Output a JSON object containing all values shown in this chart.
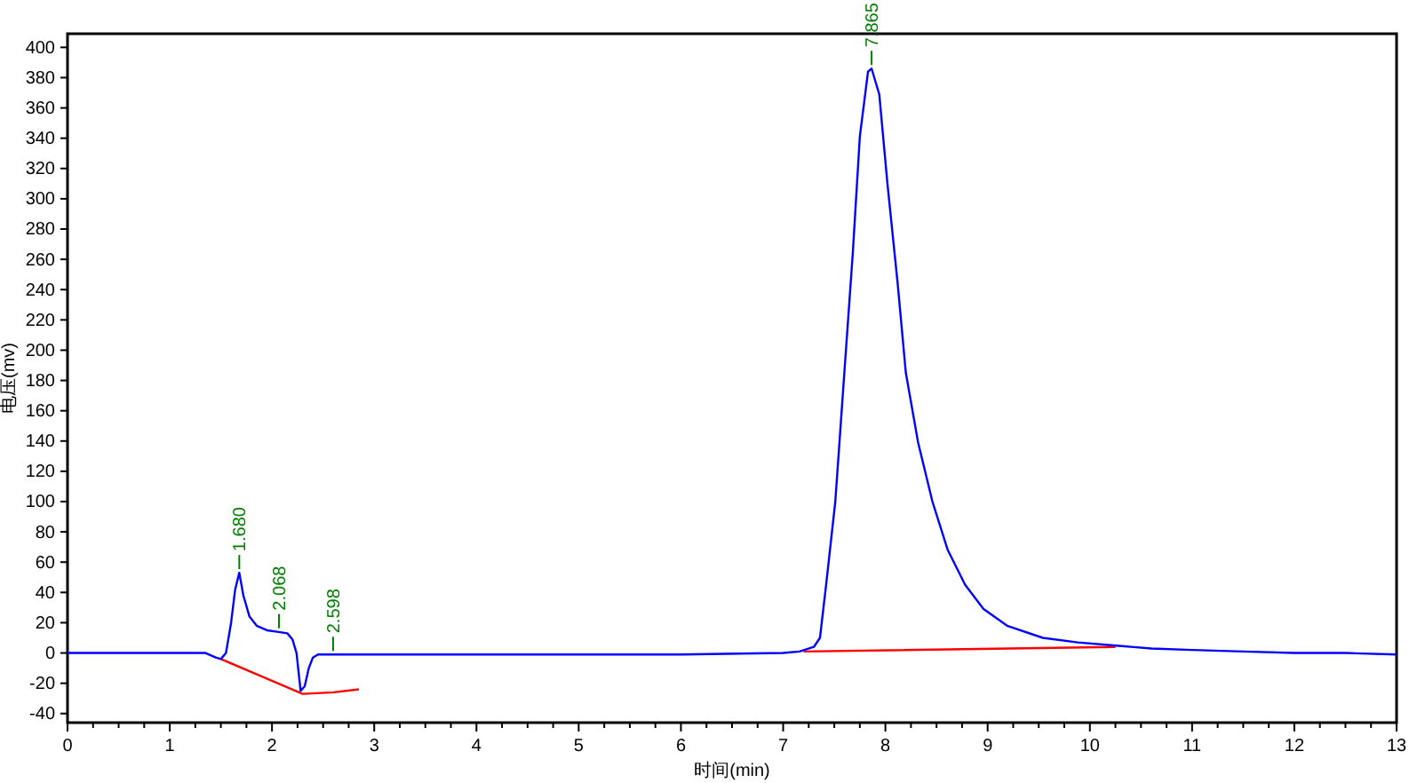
{
  "chart_data": {
    "type": "line",
    "xlabel": "时间(min)",
    "ylabel": "电压(mv)",
    "xlim": [
      0,
      13
    ],
    "ylim": [
      -46,
      409
    ],
    "xticks": [
      0,
      {
        "value": 0.25,
        "label": null
      },
      {
        "value": 0.5,
        "label": null
      },
      {
        "value": 0.75,
        "label": null
      },
      1,
      {
        "value": 1.25,
        "label": null
      },
      {
        "value": 1.5,
        "label": null
      },
      {
        "value": 1.75,
        "label": null
      },
      2,
      {
        "value": 2.25,
        "label": null
      },
      {
        "value": 2.5,
        "label": null
      },
      {
        "value": 2.75,
        "label": null
      },
      3,
      {
        "value": 3.25,
        "label": null
      },
      {
        "value": 3.5,
        "label": null
      },
      {
        "value": 3.75,
        "label": null
      },
      4,
      {
        "value": 4.25,
        "label": null
      },
      {
        "value": 4.5,
        "label": null
      },
      {
        "value": 4.75,
        "label": null
      },
      5,
      {
        "value": 5.25,
        "label": null
      },
      {
        "value": 5.5,
        "label": null
      },
      {
        "value": 5.75,
        "label": null
      },
      6,
      {
        "value": 6.25,
        "label": null
      },
      {
        "value": 6.5,
        "label": null
      },
      {
        "value": 6.75,
        "label": null
      },
      7,
      {
        "value": 7.25,
        "label": null
      },
      {
        "value": 7.5,
        "label": null
      },
      {
        "value": 7.75,
        "label": null
      },
      8,
      {
        "value": 8.25,
        "label": null
      },
      {
        "value": 8.5,
        "label": null
      },
      {
        "value": 8.75,
        "label": null
      },
      9,
      {
        "value": 9.25,
        "label": null
      },
      {
        "value": 9.5,
        "label": null
      },
      {
        "value": 9.75,
        "label": null
      },
      10,
      {
        "value": 10.25,
        "label": null
      },
      {
        "value": 10.5,
        "label": null
      },
      {
        "value": 10.75,
        "label": null
      },
      11,
      {
        "value": 11.25,
        "label": null
      },
      {
        "value": 11.5,
        "label": null
      },
      {
        "value": 11.75,
        "label": null
      },
      12,
      {
        "value": 12.25,
        "label": null
      },
      {
        "value": 12.5,
        "label": null
      },
      {
        "value": 12.75,
        "label": null
      },
      13
    ],
    "yticks": [
      -40,
      -20,
      0,
      20,
      40,
      60,
      80,
      100,
      120,
      140,
      160,
      180,
      200,
      220,
      240,
      260,
      280,
      300,
      320,
      340,
      360,
      380,
      400
    ],
    "grid": false,
    "line_style": "solid",
    "marker": "none",
    "series": [
      {
        "color": "#0000ff",
        "x": [
          0,
          1,
          1.35,
          1.45,
          1.5,
          1.55,
          1.6,
          1.64,
          1.68,
          1.72,
          1.78,
          1.85,
          1.95,
          2.05,
          2.15,
          2.2,
          2.24,
          2.28,
          2.32,
          2.36,
          2.4,
          2.45,
          2.5,
          3,
          4,
          5,
          6,
          7,
          7.16,
          7.3,
          7.36,
          7.42,
          7.51,
          7.59,
          7.68,
          7.75,
          7.83,
          7.865,
          7.94,
          8.02,
          8.12,
          8.2,
          8.32,
          8.46,
          8.61,
          8.78,
          8.96,
          9.19,
          9.54,
          9.88,
          10.23,
          10.6,
          11,
          11.5,
          12,
          12.5,
          13
        ],
        "values": [
          0,
          0,
          0,
          -3,
          -4,
          0,
          20,
          42,
          53,
          38,
          24,
          18,
          15,
          14,
          13,
          9,
          0,
          -25,
          -22,
          -10,
          -3,
          -1,
          -1,
          -1,
          -1,
          -1,
          -1,
          0,
          1,
          4,
          10,
          45,
          100,
          177,
          263,
          341,
          384,
          386,
          369,
          310,
          244,
          185,
          139,
          100,
          68,
          45,
          29,
          18,
          10,
          7,
          5,
          3,
          2,
          1,
          0,
          0,
          -1
        ]
      },
      {
        "color": "#ff0000",
        "x": [
          1.5,
          2.3,
          2.6,
          2.85,
          5,
          7.2,
          10.25
        ],
        "values": [
          -4,
          -27,
          -26,
          -24,
          null,
          1,
          4
        ]
      }
    ],
    "annotations": [
      {
        "text": "1.680",
        "x": 1.68,
        "y": 53
      },
      {
        "text": "2.068",
        "x": 2.068,
        "y": 14
      },
      {
        "text": "2.598",
        "x": 2.598,
        "y": -1
      },
      {
        "text": "7.865",
        "x": 7.865,
        "y": 386
      }
    ]
  }
}
